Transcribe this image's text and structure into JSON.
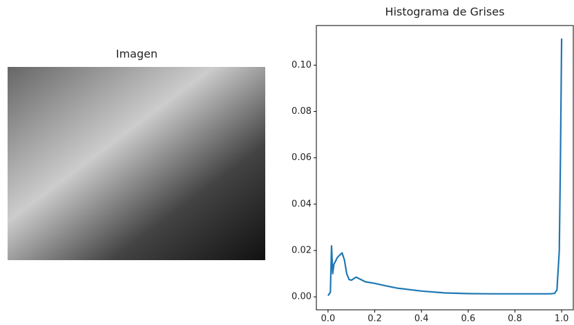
{
  "chart_data": [
    {
      "type": "image",
      "title": "Imagen"
    },
    {
      "type": "line",
      "title": "Histograma de Grises",
      "x": [
        0.0,
        0.01,
        0.015,
        0.02,
        0.025,
        0.04,
        0.06,
        0.07,
        0.08,
        0.09,
        0.1,
        0.12,
        0.14,
        0.16,
        0.2,
        0.25,
        0.3,
        0.4,
        0.5,
        0.6,
        0.7,
        0.8,
        0.9,
        0.95,
        0.97,
        0.98,
        0.99,
        0.995,
        1.0
      ],
      "series": [
        {
          "color": "#1f77b4",
          "values": [
            0.0005,
            0.002,
            0.022,
            0.01,
            0.014,
            0.017,
            0.019,
            0.016,
            0.01,
            0.0075,
            0.0072,
            0.0085,
            0.0075,
            0.0065,
            0.0058,
            0.0047,
            0.0037,
            0.0025,
            0.0017,
            0.0014,
            0.0013,
            0.0013,
            0.0013,
            0.0013,
            0.0015,
            0.003,
            0.02,
            0.06,
            0.1115
          ]
        }
      ],
      "xlim": [
        -0.05,
        1.05
      ],
      "ylim": [
        -0.0056,
        0.1171
      ],
      "xticks": [
        {
          "value": 0,
          "label": "0.0"
        },
        0.2,
        0.4,
        0.6,
        0.8,
        {
          "value": 1,
          "label": "1.0"
        }
      ],
      "yticks": [
        {
          "value": 0,
          "label": "0.00"
        },
        0.02,
        0.04,
        0.06,
        0.08,
        {
          "value": 0.1,
          "label": "0.10"
        }
      ]
    }
  ]
}
